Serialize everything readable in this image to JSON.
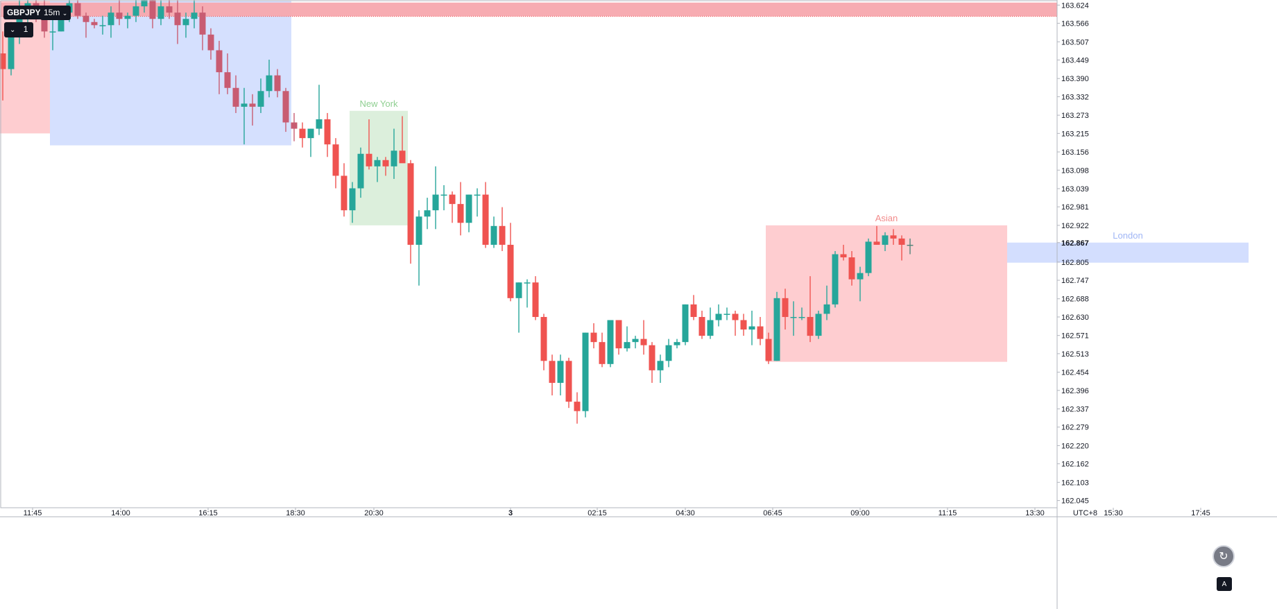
{
  "toolbar": {
    "symbol": "GBPJPY",
    "interval": "15m",
    "interval_chevron_icon": "chevron-down-icon",
    "lots_chevron": "⌄",
    "lots_value": "1"
  },
  "colors": {
    "up": "#26a69a",
    "down": "#ef5350",
    "up_dim": "#52857a",
    "down_dim": "#c85c72",
    "asian_fill": "#fecdd0",
    "london_fill": "#d3defe",
    "ny_fill": "#dcefdc",
    "asian_label": "#f28b8b",
    "london_label": "#9fb5f5",
    "ny_label": "#8fcf91",
    "ref_line": "#ef5350",
    "grid": "#e0e3eb"
  },
  "chart_data": {
    "type": "candlestick",
    "symbol": "GBPJPY",
    "timeframe": "15m",
    "x_labels": [
      "11:45",
      "14:00",
      "16:15",
      "18:30",
      "20:30",
      "3",
      "02:15",
      "04:30",
      "06:45",
      "09:00",
      "11:15",
      "13:30",
      "15:30",
      "17:45"
    ],
    "y_ticks": [
      "163.624",
      "163.566",
      "163.507",
      "163.449",
      "163.390",
      "163.332",
      "163.273",
      "163.215",
      "163.156",
      "163.098",
      "163.039",
      "162.981",
      "162.922",
      "162.867",
      "162.805",
      "162.747",
      "162.688",
      "162.630",
      "162.571",
      "162.513",
      "162.454",
      "162.396",
      "162.337",
      "162.279",
      "162.220",
      "162.162",
      "162.103",
      "162.045"
    ],
    "ylim": [
      162.022,
      163.638
    ],
    "current_price": "162.867",
    "timezone": "UTC+8",
    "candle_slots": 152,
    "sessions": [
      {
        "name": "",
        "start_slot": 0,
        "end_slot": 6,
        "high": 163.66,
        "low": 163.215
      },
      {
        "name": "",
        "start_slot": 6,
        "end_slot": 35,
        "high": 163.66,
        "low": 163.177
      },
      {
        "name": "New York",
        "start_slot": 42,
        "end_slot": 49,
        "high": 163.287,
        "low": 162.922
      },
      {
        "name": "Asian",
        "start_slot": 92,
        "end_slot": 121,
        "high": 162.922,
        "low": 162.487
      },
      {
        "name": "London",
        "start_slot": 121,
        "end_slot": 150,
        "high": 162.867,
        "low": 162.803
      }
    ],
    "reference_zone": {
      "high": 163.632,
      "low": 163.588
    },
    "candles": [
      [
        163.47,
        163.54,
        163.32,
        163.42
      ],
      [
        163.42,
        163.57,
        163.4,
        163.53
      ],
      [
        163.53,
        163.64,
        163.5,
        163.6
      ],
      [
        163.6,
        163.66,
        163.55,
        163.63
      ],
      [
        163.63,
        163.65,
        163.57,
        163.59
      ],
      [
        163.59,
        163.65,
        163.52,
        163.54
      ],
      [
        163.54,
        163.6,
        163.48,
        163.54
      ],
      [
        163.54,
        163.62,
        163.54,
        163.6
      ],
      [
        163.6,
        163.65,
        163.57,
        163.63
      ],
      [
        163.63,
        163.64,
        163.58,
        163.59
      ],
      [
        163.59,
        163.6,
        163.52,
        163.57
      ],
      [
        163.57,
        163.58,
        163.55,
        163.56
      ],
      [
        163.56,
        163.59,
        163.53,
        163.56
      ],
      [
        163.56,
        163.62,
        163.52,
        163.6
      ],
      [
        163.6,
        163.65,
        163.56,
        163.58
      ],
      [
        163.58,
        163.6,
        163.55,
        163.59
      ],
      [
        163.59,
        163.65,
        163.57,
        163.62
      ],
      [
        163.62,
        163.66,
        163.6,
        163.64
      ],
      [
        163.64,
        163.65,
        163.55,
        163.58
      ],
      [
        163.58,
        163.64,
        163.56,
        163.62
      ],
      [
        163.62,
        163.66,
        163.58,
        163.6
      ],
      [
        163.6,
        163.64,
        163.5,
        163.56
      ],
      [
        163.56,
        163.6,
        163.52,
        163.58
      ],
      [
        163.58,
        163.64,
        163.55,
        163.6
      ],
      [
        163.6,
        163.62,
        163.48,
        163.53
      ],
      [
        163.53,
        163.55,
        163.45,
        163.48
      ],
      [
        163.48,
        163.51,
        163.34,
        163.41
      ],
      [
        163.41,
        163.47,
        163.34,
        163.36
      ],
      [
        163.36,
        163.4,
        163.28,
        163.3
      ],
      [
        163.3,
        163.36,
        163.18,
        163.31
      ],
      [
        163.31,
        163.34,
        163.24,
        163.3
      ],
      [
        163.3,
        163.39,
        163.28,
        163.35
      ],
      [
        163.35,
        163.45,
        163.33,
        163.4
      ],
      [
        163.4,
        163.42,
        163.33,
        163.35
      ],
      [
        163.35,
        163.36,
        163.22,
        163.25
      ],
      [
        163.25,
        163.28,
        163.19,
        163.23
      ],
      [
        163.23,
        163.25,
        163.17,
        163.2
      ],
      [
        163.2,
        163.23,
        163.14,
        163.23
      ],
      [
        163.23,
        163.37,
        163.21,
        163.26
      ],
      [
        163.26,
        163.28,
        163.14,
        163.18
      ],
      [
        163.18,
        163.2,
        163.04,
        163.08
      ],
      [
        163.08,
        163.12,
        162.95,
        162.97
      ],
      [
        162.97,
        163.06,
        162.93,
        163.04
      ],
      [
        163.04,
        163.17,
        163.01,
        163.15
      ],
      [
        163.15,
        163.26,
        163.1,
        163.11
      ],
      [
        163.11,
        163.14,
        163.06,
        163.13
      ],
      [
        163.13,
        163.14,
        163.08,
        163.11
      ],
      [
        163.11,
        163.23,
        163.07,
        163.16
      ],
      [
        163.16,
        163.27,
        163.13,
        163.12
      ],
      [
        163.12,
        163.13,
        162.8,
        162.86
      ],
      [
        162.86,
        162.97,
        162.73,
        162.95
      ],
      [
        162.95,
        163.01,
        162.91,
        162.97
      ],
      [
        162.97,
        163.11,
        162.91,
        163.02
      ],
      [
        163.02,
        163.05,
        162.97,
        163.02
      ],
      [
        163.02,
        163.03,
        162.93,
        162.99
      ],
      [
        162.99,
        163.06,
        162.89,
        162.93
      ],
      [
        162.93,
        163.02,
        162.9,
        163.02
      ],
      [
        163.02,
        163.04,
        162.95,
        163.02
      ],
      [
        163.02,
        163.06,
        162.85,
        162.86
      ],
      [
        162.86,
        162.95,
        162.85,
        162.92
      ],
      [
        162.92,
        162.98,
        162.84,
        162.86
      ],
      [
        162.86,
        162.93,
        162.68,
        162.69
      ],
      [
        162.69,
        162.74,
        162.58,
        162.74
      ],
      [
        162.74,
        162.75,
        162.66,
        162.74
      ],
      [
        162.74,
        162.76,
        162.62,
        162.63
      ],
      [
        162.63,
        162.64,
        162.46,
        162.49
      ],
      [
        162.49,
        162.51,
        162.38,
        162.42
      ],
      [
        162.42,
        162.51,
        162.38,
        162.49
      ],
      [
        162.49,
        162.5,
        162.34,
        162.36
      ],
      [
        162.36,
        162.39,
        162.29,
        162.33
      ],
      [
        162.33,
        162.58,
        162.31,
        162.58
      ],
      [
        162.58,
        162.61,
        162.53,
        162.55
      ],
      [
        162.55,
        162.58,
        162.47,
        162.48
      ],
      [
        162.48,
        162.62,
        162.47,
        162.62
      ],
      [
        162.62,
        162.62,
        162.51,
        162.53
      ],
      [
        162.53,
        162.6,
        162.52,
        162.55
      ],
      [
        162.55,
        162.57,
        162.53,
        162.56
      ],
      [
        162.56,
        162.62,
        162.51,
        162.54
      ],
      [
        162.54,
        162.55,
        162.42,
        162.46
      ],
      [
        162.46,
        162.51,
        162.42,
        162.49
      ],
      [
        162.49,
        162.56,
        162.47,
        162.54
      ],
      [
        162.54,
        162.56,
        162.53,
        162.55
      ],
      [
        162.55,
        162.67,
        162.54,
        162.67
      ],
      [
        162.67,
        162.7,
        162.62,
        162.63
      ],
      [
        162.63,
        162.65,
        162.56,
        162.57
      ],
      [
        162.57,
        162.66,
        162.56,
        162.62
      ],
      [
        162.62,
        162.67,
        162.6,
        162.64
      ],
      [
        162.64,
        162.66,
        162.62,
        162.64
      ],
      [
        162.64,
        162.65,
        162.57,
        162.62
      ],
      [
        162.62,
        162.64,
        162.57,
        162.59
      ],
      [
        162.59,
        162.65,
        162.54,
        162.6
      ],
      [
        162.6,
        162.63,
        162.54,
        162.56
      ],
      [
        162.56,
        162.58,
        162.48,
        162.49
      ],
      [
        162.49,
        162.71,
        162.49,
        162.69
      ],
      [
        162.69,
        162.72,
        162.59,
        162.63
      ],
      [
        162.63,
        162.68,
        162.57,
        162.63
      ],
      [
        162.63,
        162.66,
        162.62,
        162.63
      ],
      [
        162.63,
        162.76,
        162.55,
        162.57
      ],
      [
        162.57,
        162.65,
        162.56,
        162.64
      ],
      [
        162.64,
        162.73,
        162.62,
        162.67
      ],
      [
        162.67,
        162.84,
        162.66,
        162.83
      ],
      [
        162.83,
        162.86,
        162.81,
        162.82
      ],
      [
        162.82,
        162.84,
        162.73,
        162.75
      ],
      [
        162.75,
        162.79,
        162.68,
        162.77
      ],
      [
        162.77,
        162.88,
        162.76,
        162.87
      ],
      [
        162.87,
        162.92,
        162.86,
        162.86
      ],
      [
        162.86,
        162.9,
        162.84,
        162.89
      ],
      [
        162.89,
        162.91,
        162.86,
        162.88
      ],
      [
        162.88,
        162.89,
        162.81,
        162.86
      ],
      [
        162.86,
        162.88,
        162.83,
        162.86
      ]
    ]
  },
  "controls": {
    "scroll_button_icon": "scroll-to-realtime-icon",
    "scroll_button_glyph": "↻",
    "auto_scale_icon": "auto-scale-icon",
    "auto_scale_glyph": "A"
  }
}
